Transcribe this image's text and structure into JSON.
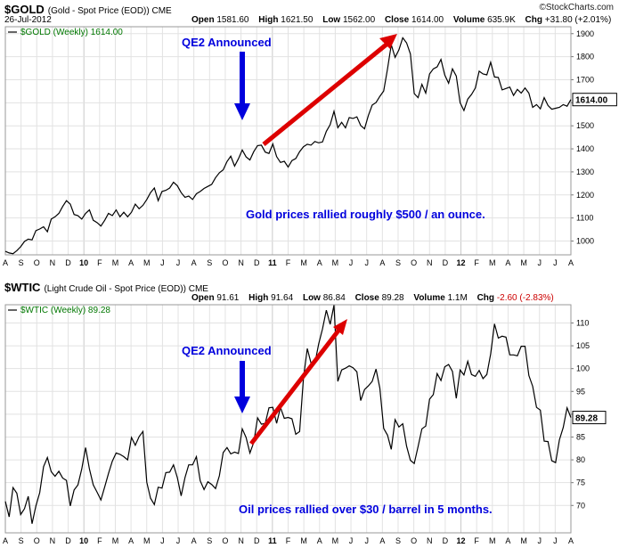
{
  "colors": {
    "annotation_blue": "#0000dd",
    "arrow_red": "#dd0000",
    "price_line": "#000000",
    "legend_green": "#007700",
    "negative_red": "#cc0000",
    "grid": "#e2e2e2"
  },
  "panels": [
    {
      "symbol": "$GOLD",
      "description": "(Gold - Spot Price (EOD)) CME",
      "watermark": "©StockCharts.com",
      "date": "26-Jul-2012",
      "quote": [
        {
          "label": "Open",
          "value": "1581.60"
        },
        {
          "label": "High",
          "value": "1621.50"
        },
        {
          "label": "Low",
          "value": "1562.00"
        },
        {
          "label": "Close",
          "value": "1614.00"
        },
        {
          "label": "Volume",
          "value": "635.9K"
        },
        {
          "label": "Chg",
          "value": "+31.80 (+2.01%)"
        }
      ],
      "chg_style": "color:#000000",
      "legend": "$GOLD (Weekly) 1614.00",
      "annotations": {
        "event": "QE2 Announced",
        "note": "Gold prices rallied roughly $500 / an ounce."
      }
    },
    {
      "symbol": "$WTIC",
      "description": "(Light Crude Oil - Spot Price (EOD)) CME",
      "quote": [
        {
          "label": "Open",
          "value": "91.61"
        },
        {
          "label": "High",
          "value": "91.64"
        },
        {
          "label": "Low",
          "value": "86.84"
        },
        {
          "label": "Close",
          "value": "89.28"
        },
        {
          "label": "Volume",
          "value": "1.1M"
        },
        {
          "label": "Chg",
          "value": "-2.60 (-2.83%)"
        }
      ],
      "chg_style": "color:#cc0000",
      "legend": "$WTIC (Weekly) 89.28",
      "annotations": {
        "event": "QE2 Announced",
        "note": "Oil prices rallied over $30 / barrel in 5 months."
      }
    }
  ],
  "chart_data": [
    {
      "type": "line",
      "title": "$GOLD (Gold - Spot Price (EOD)) CME",
      "legend": "$GOLD (Weekly)",
      "x_axis": "weekly closes, Aug 2009 - Jul 2012",
      "x_tick_labels": [
        "A",
        "S",
        "O",
        "N",
        "D",
        "10",
        "F",
        "M",
        "A",
        "M",
        "J",
        "J",
        "A",
        "S",
        "O",
        "N",
        "D",
        "11",
        "F",
        "M",
        "A",
        "M",
        "J",
        "J",
        "A",
        "S",
        "O",
        "N",
        "D",
        "12",
        "F",
        "M",
        "A",
        "M",
        "J",
        "J",
        "A"
      ],
      "ylim": [
        940,
        1930
      ],
      "yticks": [
        1000,
        1100,
        1200,
        1300,
        1400,
        1500,
        1600,
        1700,
        1800,
        1900
      ],
      "grid": true,
      "axis_side": "right",
      "last_value": 1614,
      "annotations": [
        "QE2 Announced",
        "Gold prices rallied roughly $500 / an ounce."
      ],
      "values": [
        955,
        948,
        945,
        958,
        975,
        998,
        1008,
        1005,
        1045,
        1052,
        1062,
        1040,
        1095,
        1105,
        1120,
        1150,
        1175,
        1160,
        1115,
        1110,
        1095,
        1120,
        1135,
        1090,
        1080,
        1065,
        1090,
        1120,
        1110,
        1135,
        1105,
        1125,
        1105,
        1125,
        1160,
        1140,
        1155,
        1180,
        1210,
        1230,
        1175,
        1215,
        1220,
        1230,
        1255,
        1240,
        1210,
        1190,
        1195,
        1180,
        1205,
        1215,
        1228,
        1237,
        1246,
        1275,
        1296,
        1309,
        1345,
        1368,
        1325,
        1357,
        1395,
        1365,
        1352,
        1388,
        1414,
        1416,
        1386,
        1380,
        1421,
        1366,
        1341,
        1346,
        1321,
        1349,
        1358,
        1388,
        1409,
        1420,
        1416,
        1432,
        1426,
        1430,
        1476,
        1505,
        1563,
        1492,
        1515,
        1491,
        1536,
        1532,
        1539,
        1501,
        1487,
        1545,
        1590,
        1601,
        1628,
        1651,
        1747,
        1852,
        1797,
        1830,
        1882,
        1860,
        1812,
        1640,
        1622,
        1680,
        1642,
        1725,
        1747,
        1756,
        1788,
        1720,
        1685,
        1747,
        1716,
        1600,
        1566,
        1616,
        1636,
        1664,
        1737,
        1725,
        1721,
        1776,
        1712,
        1710,
        1656,
        1662,
        1668,
        1632,
        1658,
        1642,
        1664,
        1642,
        1580,
        1592,
        1574,
        1622,
        1588,
        1572,
        1576,
        1580,
        1592,
        1585,
        1614
      ]
    },
    {
      "type": "line",
      "title": "$WTIC (Light Crude Oil - Spot Price (EOD)) CME",
      "legend": "$WTIC (Weekly)",
      "x_axis": "weekly closes, Aug 2009 - Jul 2012",
      "x_tick_labels": [
        "A",
        "S",
        "O",
        "N",
        "D",
        "10",
        "F",
        "M",
        "A",
        "M",
        "J",
        "J",
        "A",
        "S",
        "O",
        "N",
        "D",
        "11",
        "F",
        "M",
        "A",
        "M",
        "J",
        "J",
        "A",
        "S",
        "O",
        "N",
        "D",
        "12",
        "F",
        "M",
        "A",
        "M",
        "J",
        "J",
        "A"
      ],
      "ylim": [
        64,
        114
      ],
      "yticks": [
        70,
        75,
        80,
        85,
        90,
        95,
        100,
        105,
        110
      ],
      "grid": true,
      "axis_side": "right",
      "last_value": 89.28,
      "annotations": [
        "QE2 Announced",
        "Oil prices rallied over $30 / barrel in 5 months."
      ],
      "values": [
        70.9,
        67.5,
        73.9,
        72.7,
        68.0,
        69.3,
        72.0,
        66.0,
        69.9,
        72.8,
        78.5,
        80.5,
        77.4,
        76.4,
        77.5,
        76.0,
        75.5,
        69.9,
        73.4,
        74.5,
        78.0,
        82.7,
        78.0,
        74.5,
        72.9,
        71.2,
        74.1,
        77.0,
        79.7,
        81.5,
        81.2,
        80.7,
        80.0,
        84.9,
        83.2,
        85.1,
        86.2,
        75.1,
        71.6,
        70.2,
        74.0,
        73.8,
        77.2,
        77.3,
        78.9,
        76.1,
        72.1,
        76.1,
        78.9,
        78.9,
        80.7,
        75.4,
        73.5,
        75.2,
        74.6,
        73.7,
        76.5,
        81.6,
        82.7,
        81.3,
        81.7,
        81.4,
        86.8,
        84.9,
        81.5,
        83.8,
        89.2,
        87.8,
        88.0,
        91.4,
        91.5,
        88.0,
        91.5,
        89.1,
        89.3,
        89.0,
        85.6,
        86.2,
        97.9,
        104.4,
        101.2,
        101.1,
        105.4,
        108.7,
        112.8,
        109.7,
        113.9,
        97.2,
        99.7,
        100.1,
        100.6,
        100.2,
        99.3,
        93.0,
        95.4,
        96.2,
        97.2,
        99.9,
        95.7,
        86.9,
        85.4,
        82.3,
        88.8,
        87.2,
        87.9,
        83.0,
        79.9,
        79.2,
        82.9,
        86.8,
        87.4,
        93.3,
        94.3,
        98.9,
        97.4,
        100.4,
        100.9,
        99.4,
        93.5,
        99.7,
        98.6,
        101.6,
        98.7,
        98.3,
        99.6,
        97.8,
        98.7,
        103.2,
        109.8,
        106.7,
        107.1,
        106.9,
        103.0,
        103.0,
        102.8,
        104.9,
        104.9,
        98.5,
        96.1,
        91.5,
        90.9,
        84.1,
        84.0,
        79.8,
        79.4,
        84.4,
        87.1,
        91.4,
        89.28
      ]
    }
  ]
}
